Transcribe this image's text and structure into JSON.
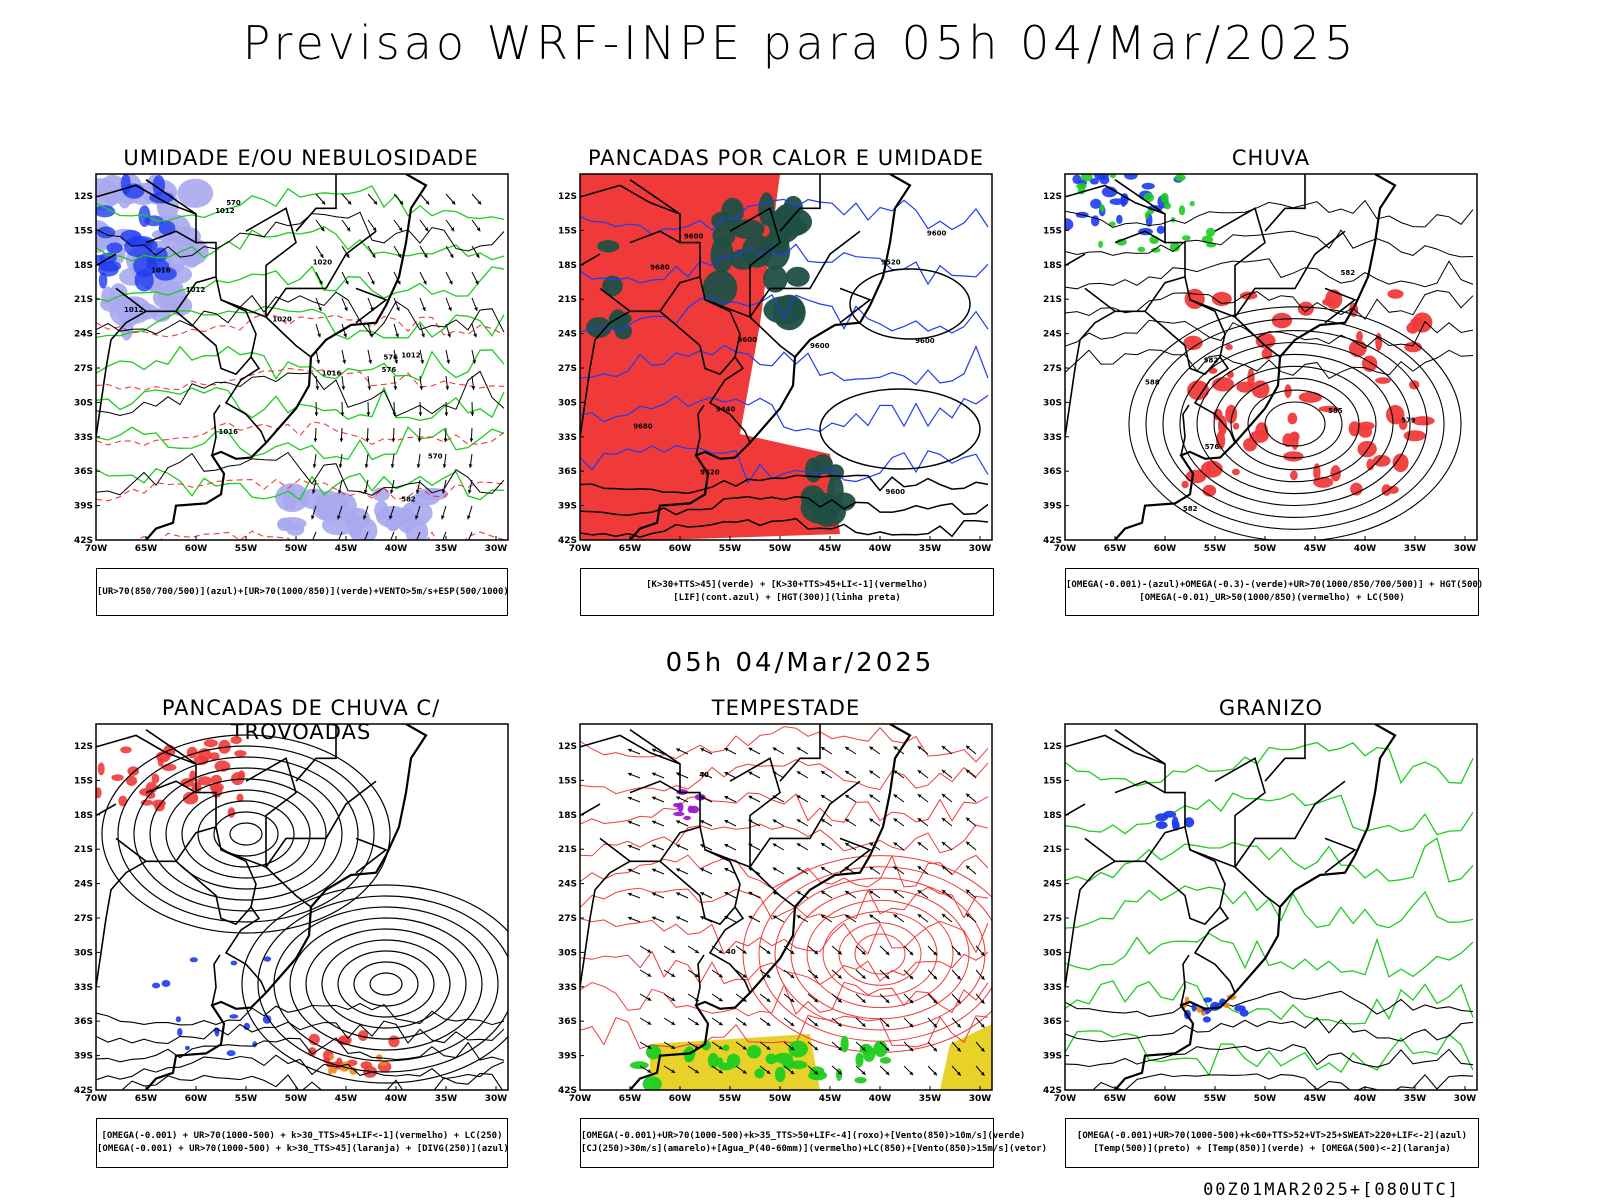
{
  "title": "Previsao WRF-INPE  para 05h 04/Mar/2025",
  "mid_title": "05h 04/Mar/2025",
  "run_label": "00Z01MAR2025+[080UTC]",
  "lat_labels": [
    "12S",
    "15S",
    "18S",
    "21S",
    "24S",
    "27S",
    "30S",
    "33S",
    "36S",
    "39S",
    "42S"
  ],
  "lon_labels": [
    "70W",
    "65W",
    "60W",
    "55W",
    "50W",
    "45W",
    "40W",
    "35W",
    "30W"
  ],
  "colors": {
    "red": "#f03a3a",
    "dark_green": "#1f4f45",
    "blue": "#1e3cf0",
    "light_blue": "#a9a9ef",
    "green": "#1fcc1f",
    "yellow": "#e8d22a",
    "purple": "#9b1bd0",
    "orange": "#f08a1a"
  },
  "panels": [
    {
      "id": "umidade",
      "title": "UMIDADE E/OU NEBULOSIDADE",
      "legend": [
        "[UR>70(850/700/500)](azul)+[UR>70(1000/850)](verde)+VENTO>5m/s+ESP(500/1000)"
      ],
      "contour_labels": [
        "1012",
        "1016",
        "1020",
        "1012",
        "1016",
        "1020",
        "1012",
        "1016",
        "570",
        "576",
        "570",
        "576",
        "582",
        "1012"
      ]
    },
    {
      "id": "pancadas",
      "title": "PANCADAS POR CALOR E UMIDADE",
      "legend": [
        "[K>30+TTS>45](verde) + [K>30+TTS>45+LI<-1](vermelho)",
        "[LIF](cont.azul) + [HGT(300)](linha preta)"
      ],
      "contour_labels": [
        "9600",
        "9600",
        "9600",
        "9600",
        "9680",
        "9680",
        "9600",
        "9520",
        "9440",
        "9600",
        "9520"
      ]
    },
    {
      "id": "chuva",
      "title": "CHUVA",
      "legend": [
        "[OMEGA(-0.001)-(azul)+OMEGA(-0.3)-(verde)+UR>70(1000/850/700/500)] + HGT(500)",
        "[OMEGA(-0.01)_UR>50(1000/850)(vermelho) + LC(500)"
      ],
      "contour_labels": [
        "582",
        "585",
        "582",
        "576",
        "579",
        "582",
        "588"
      ]
    },
    {
      "id": "trovoadas",
      "title": "PANCADAS DE CHUVA C/ TROVOADAS",
      "legend": [
        "[OMEGA(-0.001) + UR>70(1000-500) + k>30_TTS>45+LIF<-1](vermelho) + LC(250)",
        "[OMEGA(-0.001) + UR>70(1000-500) + k>30_TTS>45](laranja) + [DIVG(250)](azul)"
      ],
      "contour_labels": []
    },
    {
      "id": "tempestade",
      "title": "TEMPESTADE",
      "legend": [
        "[OMEGA(-0.001)+UR>70(1000-500)+k>35_TTS>50+LIF<-4](roxo)+[Vento(850)>10m/s](verde)",
        "[CJ(250)>30m/s](amarelo)+[Agua_P(40-60mm)](vermelho)+LC(850)+[Vento(850)>15m/s](vetor)"
      ],
      "contour_labels": [
        "40",
        "40"
      ]
    },
    {
      "id": "granizo",
      "title": "GRANIZO",
      "legend": [
        "[OMEGA(-0.001)+UR>70(1000-500)+k<60+TTS>52+VT>25+SWEAT>220+LIF<-2](azul)",
        "[Temp(500)](preto) + [Temp(850)](verde) + [OMEGA(500)<-2](laranja)"
      ],
      "contour_labels": []
    }
  ]
}
